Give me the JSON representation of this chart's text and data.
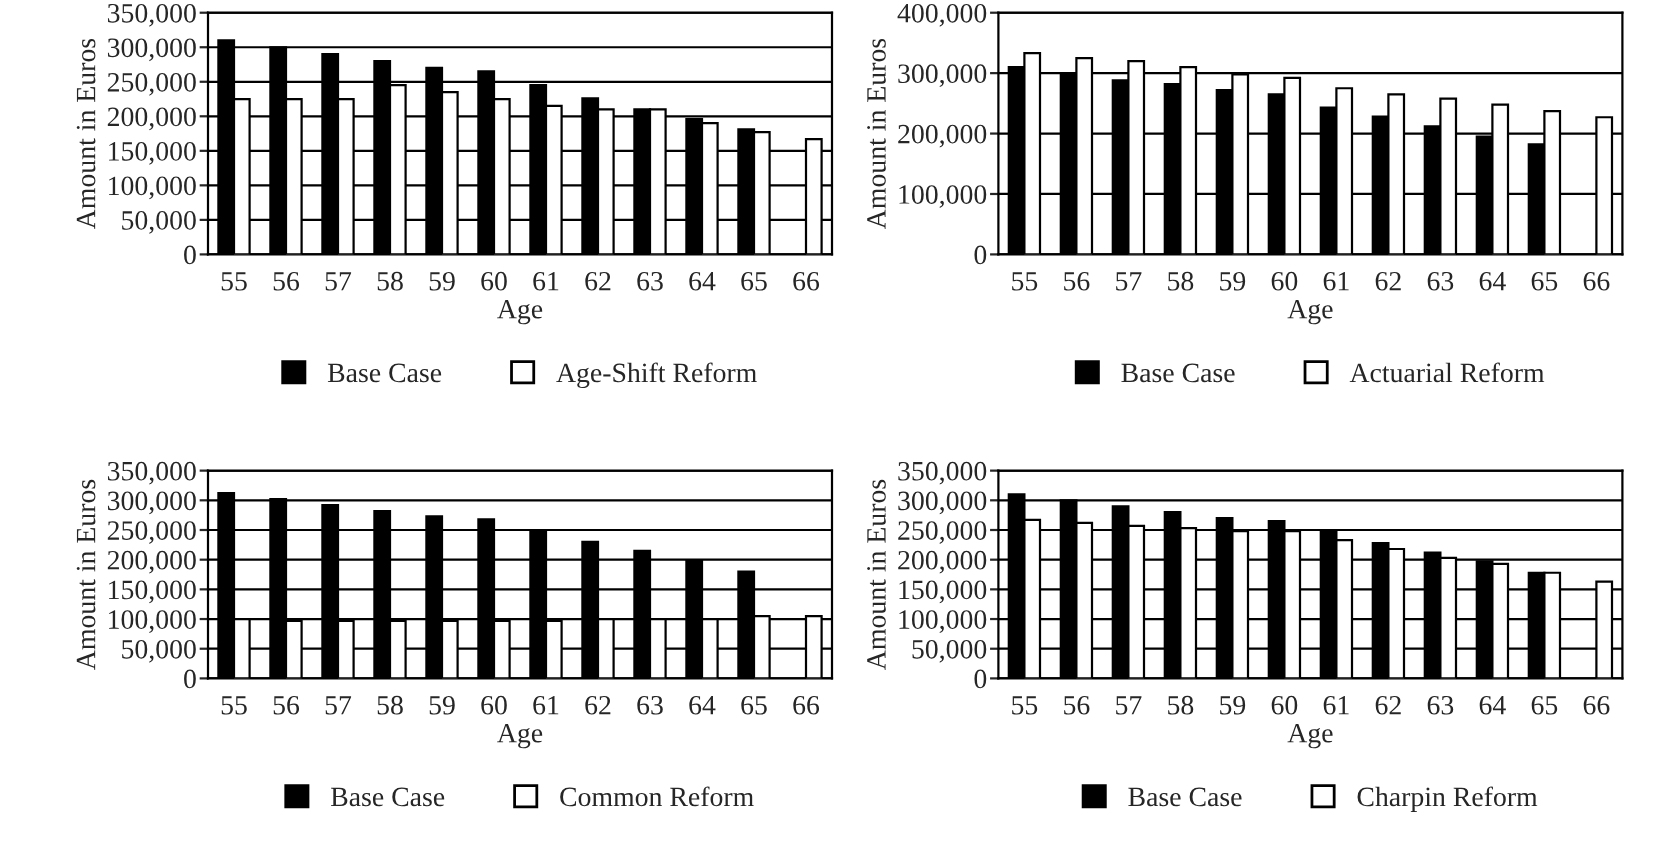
{
  "chart_data": [
    {
      "type": "bar",
      "xlabel": "Age",
      "ylabel": "Amount in Euros",
      "categories": [
        "55",
        "56",
        "57",
        "58",
        "59",
        "60",
        "61",
        "62",
        "63",
        "64",
        "65",
        "66"
      ],
      "ylim": [
        0,
        350000
      ],
      "yticks": [
        {
          "value": 0,
          "label": "0"
        },
        {
          "value": 50000,
          "label": "50,000"
        },
        {
          "value": 100000,
          "label": "100,000"
        },
        {
          "value": 150000,
          "label": "150,000"
        },
        {
          "value": 200000,
          "label": "200,000"
        },
        {
          "value": 250000,
          "label": "250,000"
        },
        {
          "value": 300000,
          "label": "300,000"
        },
        {
          "value": 350000,
          "label": "350,000"
        }
      ],
      "grid": "y",
      "legend": "bottom",
      "series": [
        {
          "name": "Base Case",
          "color": "#000000",
          "values": [
            310000,
            300000,
            290000,
            280000,
            270000,
            265000,
            245000,
            226000,
            210000,
            196000,
            181000,
            null
          ]
        },
        {
          "name": "Age-Shift Reform",
          "color": "#ffffff",
          "values": [
            225000,
            225000,
            225000,
            245000,
            235000,
            225000,
            215000,
            210000,
            210000,
            190000,
            177000,
            167000
          ]
        }
      ]
    },
    {
      "type": "bar",
      "xlabel": "Age",
      "ylabel": "Amount in Euros",
      "categories": [
        "55",
        "56",
        "57",
        "58",
        "59",
        "60",
        "61",
        "62",
        "63",
        "64",
        "65",
        "66"
      ],
      "ylim": [
        0,
        400000
      ],
      "yticks": [
        {
          "value": 0,
          "label": "0"
        },
        {
          "value": 100000,
          "label": "100,000"
        },
        {
          "value": 200000,
          "label": "200,000"
        },
        {
          "value": 300000,
          "label": "300,000"
        },
        {
          "value": 400000,
          "label": "400,000"
        }
      ],
      "grid": "y",
      "legend": "bottom",
      "series": [
        {
          "name": "Base Case",
          "color": "#000000",
          "values": [
            310000,
            300000,
            288000,
            282000,
            272000,
            265000,
            243000,
            228000,
            212000,
            195000,
            182000,
            null
          ]
        },
        {
          "name": "Actuarial Reform",
          "color": "#ffffff",
          "values": [
            333000,
            325000,
            320000,
            310000,
            298000,
            292000,
            275000,
            265000,
            258000,
            248000,
            237000,
            227000
          ]
        }
      ]
    },
    {
      "type": "bar",
      "xlabel": "Age",
      "ylabel": "Amount in Euros",
      "categories": [
        "55",
        "56",
        "57",
        "58",
        "59",
        "60",
        "61",
        "62",
        "63",
        "64",
        "65",
        "66"
      ],
      "ylim": [
        0,
        350000
      ],
      "yticks": [
        {
          "value": 0,
          "label": "0"
        },
        {
          "value": 50000,
          "label": "50,000"
        },
        {
          "value": 100000,
          "label": "100,000"
        },
        {
          "value": 150000,
          "label": "150,000"
        },
        {
          "value": 200000,
          "label": "200,000"
        },
        {
          "value": 250000,
          "label": "250,000"
        },
        {
          "value": 300000,
          "label": "300,000"
        },
        {
          "value": 350000,
          "label": "350,000"
        }
      ],
      "grid": "y",
      "legend": "bottom",
      "series": [
        {
          "name": "Base Case",
          "color": "#000000",
          "values": [
            312000,
            302000,
            292000,
            282000,
            273000,
            268000,
            248000,
            230000,
            215000,
            199000,
            180000,
            null
          ]
        },
        {
          "name": "Common Reform",
          "color": "#ffffff",
          "values": [
            100000,
            97000,
            97000,
            97000,
            97000,
            97000,
            97000,
            100000,
            100000,
            100000,
            105000,
            105000
          ]
        }
      ]
    },
    {
      "type": "bar",
      "xlabel": "Age",
      "ylabel": "Amount in Euros",
      "categories": [
        "55",
        "56",
        "57",
        "58",
        "59",
        "60",
        "61",
        "62",
        "63",
        "64",
        "65",
        "66"
      ],
      "ylim": [
        0,
        350000
      ],
      "yticks": [
        {
          "value": 0,
          "label": "0"
        },
        {
          "value": 50000,
          "label": "50,000"
        },
        {
          "value": 100000,
          "label": "100,000"
        },
        {
          "value": 150000,
          "label": "150,000"
        },
        {
          "value": 200000,
          "label": "200,000"
        },
        {
          "value": 250000,
          "label": "250,000"
        },
        {
          "value": 300000,
          "label": "300,000"
        },
        {
          "value": 350000,
          "label": "350,000"
        }
      ],
      "grid": "y",
      "legend": "bottom",
      "series": [
        {
          "name": "Base Case",
          "color": "#000000",
          "values": [
            310000,
            300000,
            290000,
            280000,
            270000,
            265000,
            247000,
            228000,
            212000,
            197000,
            178000,
            null
          ]
        },
        {
          "name": "Charpin Reform",
          "color": "#ffffff",
          "values": [
            267000,
            262000,
            257000,
            253000,
            248000,
            248000,
            233000,
            218000,
            203000,
            193000,
            178000,
            163000
          ]
        }
      ]
    }
  ]
}
